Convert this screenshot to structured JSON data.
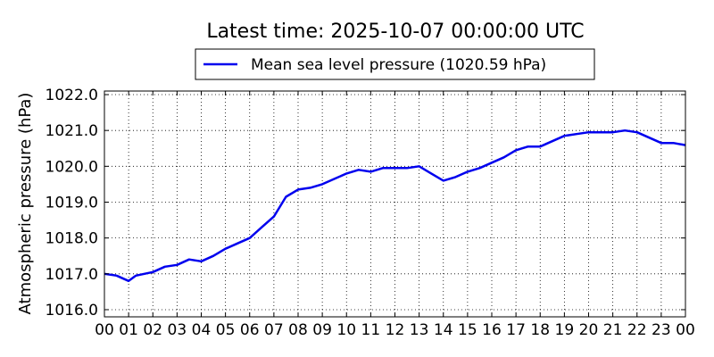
{
  "chart_data": {
    "type": "line",
    "title": "Latest time: 2025-10-07 00:00:00 UTC",
    "xlabel": "",
    "ylabel": "Atmospheric pressure (hPa)",
    "xlim": [
      0,
      24
    ],
    "ylim": [
      1015.8,
      1022.1
    ],
    "grid": true,
    "legend_placement": "top-center",
    "x_tick_labels": [
      "00",
      "01",
      "02",
      "03",
      "04",
      "05",
      "06",
      "07",
      "08",
      "09",
      "10",
      "11",
      "12",
      "13",
      "14",
      "15",
      "16",
      "17",
      "18",
      "19",
      "20",
      "21",
      "22",
      "23",
      "00"
    ],
    "y_ticks": [
      1016.0,
      1017.0,
      1018.0,
      1019.0,
      1020.0,
      1021.0,
      1022.0
    ],
    "y_tick_labels": [
      "1016.0",
      "1017.0",
      "1018.0",
      "1019.0",
      "1020.0",
      "1021.0",
      "1022.0"
    ],
    "series": [
      {
        "name": "Mean sea level pressure (1020.59 hPa)",
        "color": "#0000ee",
        "x": [
          0,
          0.5,
          1.0,
          1.3,
          2.0,
          2.5,
          3.0,
          3.5,
          4.0,
          4.5,
          5.0,
          5.5,
          6.0,
          6.5,
          7.0,
          7.5,
          8.0,
          8.5,
          9.0,
          9.5,
          10.0,
          10.5,
          11.0,
          11.5,
          12.0,
          12.5,
          13.0,
          13.5,
          14.0,
          14.5,
          15.0,
          15.5,
          16.0,
          16.5,
          17.0,
          17.5,
          18.0,
          18.5,
          19.0,
          19.5,
          20.0,
          20.5,
          21.0,
          21.5,
          22.0,
          22.5,
          23.0,
          23.5,
          24.0
        ],
        "values": [
          1017.0,
          1016.95,
          1016.8,
          1016.95,
          1017.05,
          1017.2,
          1017.25,
          1017.4,
          1017.35,
          1017.5,
          1017.7,
          1017.85,
          1018.0,
          1018.3,
          1018.6,
          1019.15,
          1019.35,
          1019.4,
          1019.5,
          1019.65,
          1019.8,
          1019.9,
          1019.85,
          1019.95,
          1019.95,
          1019.95,
          1020.0,
          1019.8,
          1019.6,
          1019.7,
          1019.85,
          1019.95,
          1020.1,
          1020.25,
          1020.45,
          1020.55,
          1020.55,
          1020.7,
          1020.85,
          1020.9,
          1020.95,
          1020.95,
          1020.95,
          1021.0,
          1020.95,
          1020.8,
          1020.65,
          1020.65,
          1020.59
        ]
      }
    ]
  }
}
